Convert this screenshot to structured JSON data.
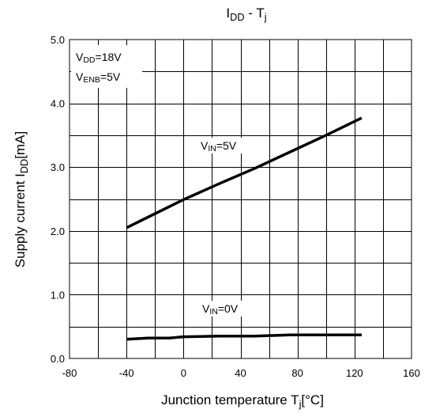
{
  "chart_data": {
    "type": "line",
    "title": {
      "base": "I",
      "sub": "DD",
      "rest": " - T",
      "sub2": "j"
    },
    "xlabel": {
      "base": "Junction temperature T",
      "sub": "j",
      "rest": "[°C]"
    },
    "ylabel": {
      "base": "Supply current I",
      "sub": "DD",
      "rest": "[mA]"
    },
    "xlim": [
      -80,
      160
    ],
    "ylim": [
      0,
      5
    ],
    "x_ticks": [
      -80,
      -40,
      0,
      40,
      80,
      120,
      160
    ],
    "x_tick_labels": [
      "-80",
      "-40",
      "0",
      "40",
      "80",
      "120",
      "160"
    ],
    "y_ticks": [
      0,
      1,
      2,
      3,
      4,
      5
    ],
    "y_tick_labels": [
      "0.0",
      "1.0",
      "2.0",
      "3.0",
      "4.0",
      "5.0"
    ],
    "x_grid_step": 20,
    "y_grid_step": 0.5,
    "grid": true,
    "conditions": [
      {
        "base": "V",
        "sub": "DD",
        "rest": "=18V"
      },
      {
        "base": "V",
        "sub": "ENB",
        "rest": "=5V"
      }
    ],
    "series": [
      {
        "label": {
          "base": "V",
          "sub": "IN",
          "rest": "=5V"
        },
        "x": [
          -40,
          -20,
          0,
          25,
          50,
          75,
          100,
          125
        ],
        "y": [
          2.05,
          2.27,
          2.49,
          2.74,
          2.98,
          3.24,
          3.5,
          3.77
        ]
      },
      {
        "label": {
          "base": "V",
          "sub": "IN",
          "rest": "=0V"
        },
        "x": [
          -40,
          -25,
          -10,
          0,
          25,
          50,
          75,
          100,
          125
        ],
        "y": [
          0.3,
          0.32,
          0.32,
          0.34,
          0.35,
          0.35,
          0.37,
          0.37,
          0.37
        ]
      }
    ]
  }
}
